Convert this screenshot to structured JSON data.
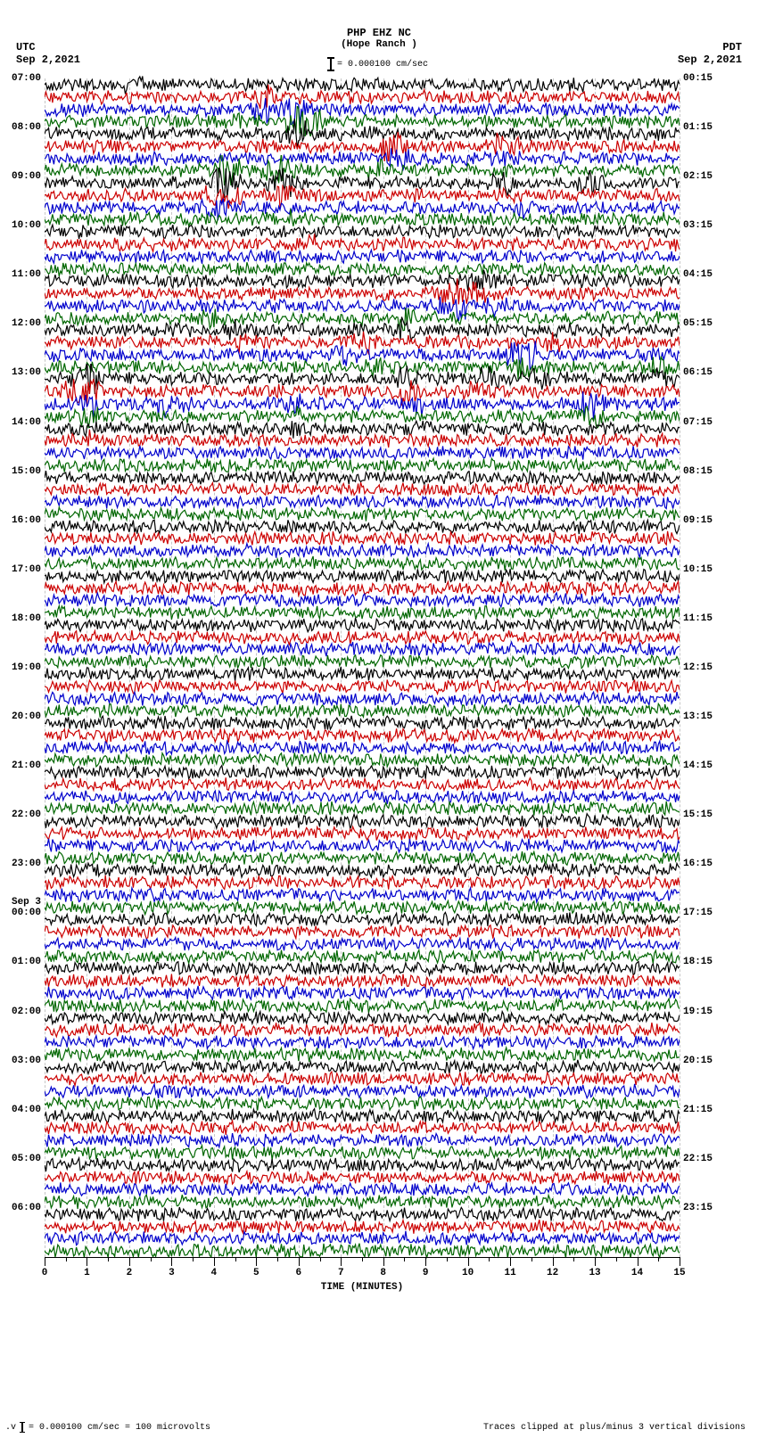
{
  "header": {
    "station": "PHP EHZ NC",
    "location": "(Hope Ranch )",
    "scale_text": "= 0.000100 cm/sec"
  },
  "tz_left": {
    "tz": "UTC",
    "date": "Sep 2,2021"
  },
  "tz_right": {
    "tz": "PDT",
    "date": "Sep 2,2021"
  },
  "x_axis": {
    "title": "TIME (MINUTES)",
    "ticks": [
      0,
      1,
      2,
      3,
      4,
      5,
      6,
      7,
      8,
      9,
      10,
      11,
      12,
      13,
      14,
      15
    ]
  },
  "footer": {
    "left": "= 0.000100 cm/sec =    100 microvolts",
    "right": "Traces clipped at plus/minus 3 vertical divisions"
  },
  "colors": [
    "#000000",
    "#cc0000",
    "#0000cc",
    "#006600"
  ],
  "seismogram": {
    "row_count": 96,
    "row_height": 13.77,
    "trace_amplitude": 7,
    "left_labels": [
      {
        "row": 0,
        "text": "07:00"
      },
      {
        "row": 4,
        "text": "08:00"
      },
      {
        "row": 8,
        "text": "09:00"
      },
      {
        "row": 12,
        "text": "10:00"
      },
      {
        "row": 16,
        "text": "11:00"
      },
      {
        "row": 20,
        "text": "12:00"
      },
      {
        "row": 24,
        "text": "13:00"
      },
      {
        "row": 28,
        "text": "14:00"
      },
      {
        "row": 32,
        "text": "15:00"
      },
      {
        "row": 36,
        "text": "16:00"
      },
      {
        "row": 40,
        "text": "17:00"
      },
      {
        "row": 44,
        "text": "18:00"
      },
      {
        "row": 48,
        "text": "19:00"
      },
      {
        "row": 52,
        "text": "20:00"
      },
      {
        "row": 56,
        "text": "21:00"
      },
      {
        "row": 60,
        "text": "22:00"
      },
      {
        "row": 64,
        "text": "23:00"
      },
      {
        "row": 68,
        "text": "00:00",
        "day": "Sep 3"
      },
      {
        "row": 72,
        "text": "01:00"
      },
      {
        "row": 76,
        "text": "02:00"
      },
      {
        "row": 80,
        "text": "03:00"
      },
      {
        "row": 84,
        "text": "04:00"
      },
      {
        "row": 88,
        "text": "05:00"
      },
      {
        "row": 92,
        "text": "06:00"
      }
    ],
    "right_labels": [
      {
        "row": 0,
        "text": "00:15"
      },
      {
        "row": 4,
        "text": "01:15"
      },
      {
        "row": 8,
        "text": "02:15"
      },
      {
        "row": 12,
        "text": "03:15"
      },
      {
        "row": 16,
        "text": "04:15"
      },
      {
        "row": 20,
        "text": "05:15"
      },
      {
        "row": 24,
        "text": "06:15"
      },
      {
        "row": 28,
        "text": "07:15"
      },
      {
        "row": 32,
        "text": "08:15"
      },
      {
        "row": 36,
        "text": "09:15"
      },
      {
        "row": 40,
        "text": "10:15"
      },
      {
        "row": 44,
        "text": "11:15"
      },
      {
        "row": 48,
        "text": "12:15"
      },
      {
        "row": 52,
        "text": "13:15"
      },
      {
        "row": 56,
        "text": "14:15"
      },
      {
        "row": 60,
        "text": "15:15"
      },
      {
        "row": 64,
        "text": "16:15"
      },
      {
        "row": 68,
        "text": "17:15"
      },
      {
        "row": 72,
        "text": "18:15"
      },
      {
        "row": 76,
        "text": "19:15"
      },
      {
        "row": 80,
        "text": "20:15"
      },
      {
        "row": 84,
        "text": "21:15"
      },
      {
        "row": 88,
        "text": "22:15"
      },
      {
        "row": 92,
        "text": "23:15"
      }
    ],
    "events": [
      {
        "row": 0,
        "x": 0.14,
        "h": 1.5
      },
      {
        "row": 1,
        "x": 0.35,
        "h": 2.0
      },
      {
        "row": 2,
        "x": 0.4,
        "h": 3.0
      },
      {
        "row": 2,
        "x": 0.34,
        "h": 2.0
      },
      {
        "row": 3,
        "x": 0.41,
        "h": 3.2
      },
      {
        "row": 3,
        "x": 0.31,
        "h": 1.8
      },
      {
        "row": 4,
        "x": 0.4,
        "h": 2.5
      },
      {
        "row": 4,
        "x": 0.51,
        "h": 1.6
      },
      {
        "row": 5,
        "x": 0.55,
        "h": 2.8
      },
      {
        "row": 5,
        "x": 0.72,
        "h": 2.5
      },
      {
        "row": 6,
        "x": 0.56,
        "h": 2.2
      },
      {
        "row": 6,
        "x": 0.72,
        "h": 2.0
      },
      {
        "row": 7,
        "x": 0.28,
        "h": 3.0
      },
      {
        "row": 7,
        "x": 0.37,
        "h": 3.0
      },
      {
        "row": 7,
        "x": 0.52,
        "h": 1.8
      },
      {
        "row": 8,
        "x": 0.28,
        "h": 2.8
      },
      {
        "row": 8,
        "x": 0.38,
        "h": 2.8
      },
      {
        "row": 8,
        "x": 0.72,
        "h": 2.2
      },
      {
        "row": 8,
        "x": 0.86,
        "h": 2.0
      },
      {
        "row": 9,
        "x": 0.28,
        "h": 2.5
      },
      {
        "row": 9,
        "x": 0.38,
        "h": 2.0
      },
      {
        "row": 10,
        "x": 0.27,
        "h": 2.2
      },
      {
        "row": 10,
        "x": 0.76,
        "h": 1.6
      },
      {
        "row": 11,
        "x": 0.4,
        "h": 1.5
      },
      {
        "row": 13,
        "x": 0.42,
        "h": 1.5
      },
      {
        "row": 16,
        "x": 0.68,
        "h": 2.2
      },
      {
        "row": 16,
        "x": 0.7,
        "h": 2.0
      },
      {
        "row": 17,
        "x": 0.64,
        "h": 2.5
      },
      {
        "row": 17,
        "x": 0.68,
        "h": 2.0
      },
      {
        "row": 18,
        "x": 0.65,
        "h": 2.5
      },
      {
        "row": 18,
        "x": 0.71,
        "h": 2.0
      },
      {
        "row": 19,
        "x": 0.26,
        "h": 1.8
      },
      {
        "row": 19,
        "x": 0.57,
        "h": 2.0
      },
      {
        "row": 20,
        "x": 0.3,
        "h": 1.8
      },
      {
        "row": 20,
        "x": 0.5,
        "h": 1.6
      },
      {
        "row": 20,
        "x": 0.57,
        "h": 2.2
      },
      {
        "row": 21,
        "x": 0.32,
        "h": 1.8
      },
      {
        "row": 21,
        "x": 0.5,
        "h": 2.0
      },
      {
        "row": 21,
        "x": 0.8,
        "h": 1.6
      },
      {
        "row": 22,
        "x": 0.47,
        "h": 2.0
      },
      {
        "row": 22,
        "x": 0.76,
        "h": 2.5
      },
      {
        "row": 22,
        "x": 0.74,
        "h": 2.2
      },
      {
        "row": 23,
        "x": 0.52,
        "h": 2.0
      },
      {
        "row": 23,
        "x": 0.76,
        "h": 2.0
      },
      {
        "row": 23,
        "x": 0.97,
        "h": 2.5
      },
      {
        "row": 24,
        "x": 0.07,
        "h": 2.8
      },
      {
        "row": 24,
        "x": 0.57,
        "h": 2.2
      },
      {
        "row": 24,
        "x": 0.7,
        "h": 2.0
      },
      {
        "row": 24,
        "x": 0.77,
        "h": 2.2
      },
      {
        "row": 24,
        "x": 0.97,
        "h": 2.2
      },
      {
        "row": 25,
        "x": 0.06,
        "h": 3.0
      },
      {
        "row": 25,
        "x": 0.07,
        "h": 2.5
      },
      {
        "row": 25,
        "x": 0.57,
        "h": 2.5
      },
      {
        "row": 25,
        "x": 0.68,
        "h": 2.0
      },
      {
        "row": 26,
        "x": 0.07,
        "h": 2.2
      },
      {
        "row": 26,
        "x": 0.19,
        "h": 2.0
      },
      {
        "row": 26,
        "x": 0.39,
        "h": 2.0
      },
      {
        "row": 26,
        "x": 0.59,
        "h": 1.8
      },
      {
        "row": 26,
        "x": 0.86,
        "h": 2.5
      },
      {
        "row": 27,
        "x": 0.07,
        "h": 2.0
      },
      {
        "row": 27,
        "x": 0.4,
        "h": 1.6
      },
      {
        "row": 27,
        "x": 0.86,
        "h": 2.2
      },
      {
        "row": 28,
        "x": 0.07,
        "h": 2.0
      },
      {
        "row": 28,
        "x": 0.4,
        "h": 1.5
      },
      {
        "row": 28,
        "x": 0.59,
        "h": 1.5
      },
      {
        "row": 29,
        "x": 0.08,
        "h": 1.5
      }
    ]
  }
}
